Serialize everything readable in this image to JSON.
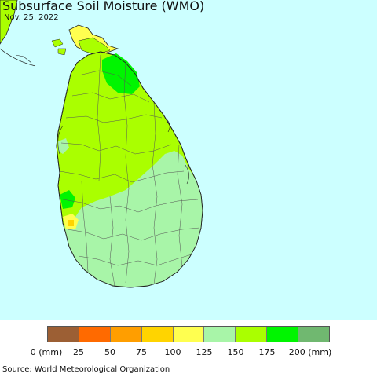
{
  "title": "Subsurface Soil Moisture (WMO)",
  "date": "Nov. 25, 2022",
  "source": "Source: World Meteorological Organization",
  "legend": {
    "colors": [
      "#9c5f34",
      "#ff6a00",
      "#ff9e00",
      "#ffd400",
      "#ffff50",
      "#a8f5a8",
      "#aaff00",
      "#00f500",
      "#70b870"
    ],
    "ticks": [
      "0 (mm)",
      "25",
      "50",
      "75",
      "100",
      "125",
      "150",
      "175",
      "200 (mm)"
    ]
  },
  "colors": {
    "sea": "#ccffff",
    "range_150_175": "#aaff00",
    "range_125_150": "#a8f5a8",
    "range_175_200": "#00f500",
    "range_100_125": "#ffff50",
    "range_75_100": "#ffd400"
  }
}
